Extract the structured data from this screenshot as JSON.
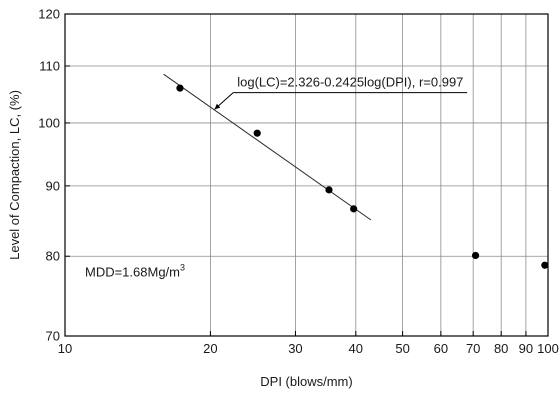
{
  "chart_data": {
    "type": "scatter",
    "xscale": "log",
    "yscale": "log",
    "xlim": [
      10,
      100
    ],
    "ylim": [
      70,
      120
    ],
    "xlabel": "DPI (blows/mm)",
    "ylabel": "Level of Compaction, LC, (%)",
    "x_ticks": [
      10,
      20,
      30,
      40,
      50,
      60,
      70,
      80,
      90,
      100
    ],
    "x_tick_labels": [
      "10",
      "20",
      "30",
      "40",
      "50",
      "60",
      "70",
      "80",
      "90",
      "100"
    ],
    "y_ticks": [
      70,
      80,
      90,
      100,
      110,
      120
    ],
    "y_tick_labels": [
      "70",
      "80",
      "90",
      "100",
      "110",
      "120"
    ],
    "grid": true,
    "points": [
      {
        "x": 17.3,
        "y": 106.0
      },
      {
        "x": 25.0,
        "y": 98.3
      },
      {
        "x": 35.2,
        "y": 89.4
      },
      {
        "x": 39.6,
        "y": 86.6
      },
      {
        "x": 70.8,
        "y": 80.1
      },
      {
        "x": 98.5,
        "y": 78.8
      }
    ],
    "fit_line": {
      "x_range": [
        16.0,
        43.0
      ],
      "y_range": [
        108.5,
        85.0
      ]
    },
    "equation_text": "log(LC)=2.326-0.2425log(DPI),  r=0.997",
    "equation_leader": {
      "from": {
        "x": 21.2,
        "y": 105.2
      },
      "corner": {
        "x": 22.3,
        "y": 105.2
      },
      "to": {
        "x": 20.4,
        "y": 102.3
      },
      "end": {
        "x": 68.0,
        "y": 105.2
      }
    },
    "mdd_text": "MDD=1.68Mg/m",
    "mdd_superscript": "3",
    "mdd_anchor": {
      "x": 11.0,
      "y": 77.3
    }
  }
}
